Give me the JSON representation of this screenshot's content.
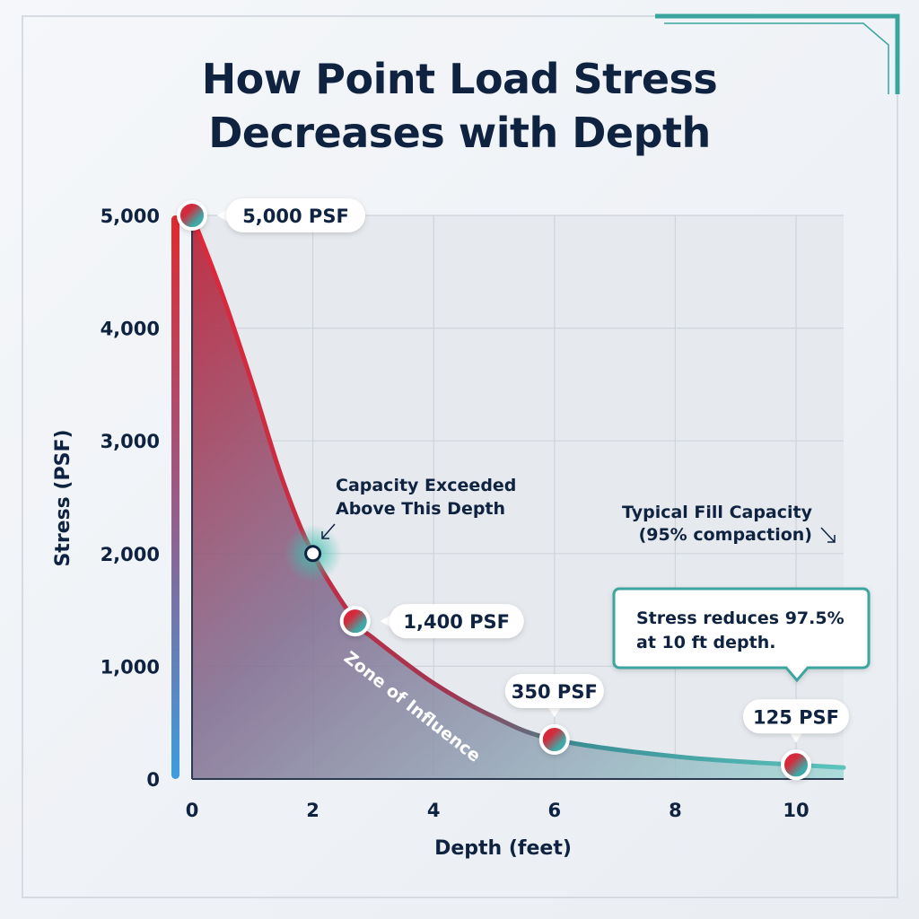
{
  "title_line1": "How Point Load Stress",
  "title_line2": "Decreases with Depth",
  "colors": {
    "high": "#d42a3a",
    "low": "#3fb3ad",
    "navy": "#0f2340",
    "teal": "#3aa59e",
    "axis_bar_top": "#e02a2e",
    "axis_bar_bottom": "#3a9de0"
  },
  "chart_data": {
    "type": "area",
    "title": "How Point Load Stress Decreases with Depth",
    "xlabel": "Depth (feet)",
    "ylabel": "Stress (PSF)",
    "xlim": [
      0,
      10
    ],
    "ylim": [
      0,
      5000
    ],
    "x_ticks": [
      0,
      2,
      4,
      6,
      8,
      10
    ],
    "x_tick_labels": [
      "0",
      "2",
      "4",
      "6",
      "8",
      "10"
    ],
    "y_ticks": [
      0,
      1000,
      2000,
      3000,
      4000,
      5000
    ],
    "y_tick_labels": [
      "0",
      "1,000",
      "2,000",
      "3,000",
      "4,000",
      "5,000"
    ],
    "grid": true,
    "curve": {
      "x": [
        0,
        0.5,
        1,
        1.5,
        2,
        2.7,
        3,
        4,
        5,
        6,
        8,
        10
      ],
      "y": [
        5000,
        4300,
        3500,
        2650,
        2000,
        1400,
        1250,
        850,
        550,
        350,
        200,
        125
      ]
    },
    "points": [
      {
        "x": 0,
        "y": 5000,
        "label": "5,000 PSF"
      },
      {
        "x": 2.7,
        "y": 1400,
        "label": "1,400 PSF"
      },
      {
        "x": 6,
        "y": 350,
        "label": "350 PSF"
      },
      {
        "x": 10,
        "y": 125,
        "label": "125 PSF"
      }
    ],
    "capacity_line": {
      "y": 2000,
      "label_line1": "Typical Fill Capacity",
      "label_line2": "(95% compaction)"
    },
    "intersection": {
      "x": 2,
      "y": 2000,
      "label_line1": "Capacity Exceeded",
      "label_line2": "Above This Depth"
    },
    "area_label": "Zone of Influence",
    "callout": {
      "line1": "Stress reduces 97.5%",
      "line2": "at 10 ft depth."
    }
  }
}
